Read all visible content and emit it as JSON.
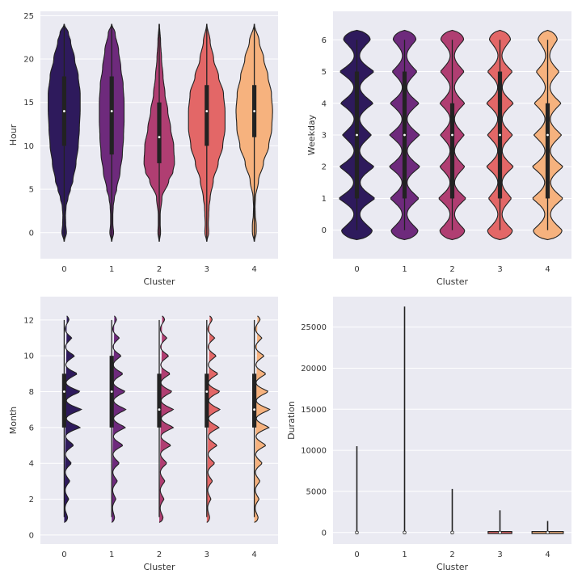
{
  "chart_data": [
    {
      "type": "violin",
      "xlabel": "Cluster",
      "ylabel": "Hour",
      "categories": [
        "0",
        "1",
        "2",
        "3",
        "4"
      ],
      "yticks": [
        0,
        5,
        10,
        15,
        20,
        25
      ],
      "ylim": [
        -3,
        25.5
      ],
      "grid": true,
      "violins": [
        {
          "cluster": "0",
          "min": -1,
          "max": 24,
          "q1": 10,
          "median": 14,
          "q3": 18,
          "profile": [
            [
              -1,
              0.01
            ],
            [
              0,
              0.12
            ],
            [
              1,
              0.08
            ],
            [
              2,
              0.07
            ],
            [
              3,
              0.1
            ],
            [
              4,
              0.2
            ],
            [
              5,
              0.33
            ],
            [
              6,
              0.46
            ],
            [
              8,
              0.62
            ],
            [
              10,
              0.74
            ],
            [
              12,
              0.8
            ],
            [
              14,
              0.84
            ],
            [
              16,
              0.84
            ],
            [
              18,
              0.74
            ],
            [
              20,
              0.55
            ],
            [
              22,
              0.34
            ],
            [
              23,
              0.22
            ],
            [
              24,
              0.01
            ]
          ]
        },
        {
          "cluster": "1",
          "min": -1,
          "max": 24,
          "q1": 9,
          "median": 14,
          "q3": 18,
          "profile": [
            [
              -1,
              0.01
            ],
            [
              0,
              0.1
            ],
            [
              1,
              0.06
            ],
            [
              2,
              0.06
            ],
            [
              3,
              0.08
            ],
            [
              4,
              0.14
            ],
            [
              5,
              0.26
            ],
            [
              7,
              0.44
            ],
            [
              9,
              0.56
            ],
            [
              11,
              0.62
            ],
            [
              13,
              0.65
            ],
            [
              15,
              0.65
            ],
            [
              17,
              0.6
            ],
            [
              19,
              0.48
            ],
            [
              21,
              0.36
            ],
            [
              23,
              0.18
            ],
            [
              24,
              0.01
            ]
          ]
        },
        {
          "cluster": "2",
          "min": -1,
          "max": 24,
          "q1": 8,
          "median": 11,
          "q3": 15,
          "profile": [
            [
              -1,
              0.01
            ],
            [
              0,
              0.07
            ],
            [
              1,
              0.05
            ],
            [
              2,
              0.05
            ],
            [
              4,
              0.14
            ],
            [
              6,
              0.5
            ],
            [
              7,
              0.72
            ],
            [
              8,
              0.8
            ],
            [
              10,
              0.76
            ],
            [
              12,
              0.6
            ],
            [
              14,
              0.45
            ],
            [
              16,
              0.3
            ],
            [
              18,
              0.2
            ],
            [
              20,
              0.12
            ],
            [
              22,
              0.07
            ],
            [
              24,
              0.01
            ]
          ]
        },
        {
          "cluster": "3",
          "min": -1,
          "max": 24,
          "q1": 10,
          "median": 14,
          "q3": 17,
          "profile": [
            [
              -1,
              0.01
            ],
            [
              0,
              0.1
            ],
            [
              1,
              0.08
            ],
            [
              2,
              0.1
            ],
            [
              3,
              0.12
            ],
            [
              4,
              0.18
            ],
            [
              6,
              0.34
            ],
            [
              8,
              0.6
            ],
            [
              10,
              0.84
            ],
            [
              12,
              0.96
            ],
            [
              14,
              0.96
            ],
            [
              16,
              0.88
            ],
            [
              18,
              0.62
            ],
            [
              20,
              0.36
            ],
            [
              22,
              0.18
            ],
            [
              24,
              0.01
            ]
          ]
        },
        {
          "cluster": "4",
          "min": -1,
          "max": 24,
          "q1": 11,
          "median": 14,
          "q3": 17,
          "profile": [
            [
              -1,
              0.01
            ],
            [
              0,
              0.1
            ],
            [
              1,
              0.1
            ],
            [
              2,
              0.05
            ],
            [
              3,
              0.04
            ],
            [
              4,
              0.06
            ],
            [
              6,
              0.22
            ],
            [
              8,
              0.48
            ],
            [
              10,
              0.76
            ],
            [
              12,
              0.92
            ],
            [
              14,
              0.96
            ],
            [
              16,
              0.9
            ],
            [
              18,
              0.72
            ],
            [
              20,
              0.5
            ],
            [
              22,
              0.26
            ],
            [
              24,
              0.01
            ]
          ]
        }
      ]
    },
    {
      "type": "violin",
      "xlabel": "Cluster",
      "ylabel": "Weekday",
      "categories": [
        "0",
        "1",
        "2",
        "3",
        "4"
      ],
      "yticks": [
        0,
        1,
        2,
        3,
        4,
        5,
        6
      ],
      "ylim": [
        -0.9,
        6.9
      ],
      "grid": true,
      "violins": [
        {
          "cluster": "0",
          "min": 0,
          "max": 6,
          "q1": 1,
          "median": 3,
          "q3": 5,
          "peaks": [
            0.8,
            0.95,
            0.9,
            0.75,
            0.85,
            0.9,
            0.7
          ],
          "dip": 0.16
        },
        {
          "cluster": "1",
          "min": 0,
          "max": 6,
          "q1": 1,
          "median": 3,
          "q3": 5,
          "peaks": [
            0.7,
            0.75,
            0.8,
            0.78,
            0.75,
            0.65,
            0.6
          ],
          "dip": 0.14
        },
        {
          "cluster": "2",
          "min": 0,
          "max": 6,
          "q1": 1,
          "median": 3,
          "q3": 4,
          "peaks": [
            0.65,
            0.72,
            0.65,
            0.62,
            0.65,
            0.62,
            0.6
          ],
          "dip": 0.14
        },
        {
          "cluster": "3",
          "min": 0,
          "max": 6,
          "q1": 1,
          "median": 3,
          "q3": 5,
          "peaks": [
            0.65,
            0.6,
            0.7,
            0.65,
            0.7,
            0.65,
            0.55
          ],
          "dip": 0.14
        },
        {
          "cluster": "4",
          "min": 0,
          "max": 6,
          "q1": 1,
          "median": 3,
          "q3": 4,
          "peaks": [
            0.75,
            0.8,
            0.8,
            0.72,
            0.7,
            0.6,
            0.5
          ],
          "dip": 0.16
        }
      ]
    },
    {
      "type": "violin",
      "xlabel": "Cluster",
      "ylabel": "Month",
      "categories": [
        "0",
        "1",
        "2",
        "3",
        "4"
      ],
      "yticks": [
        0,
        2,
        4,
        6,
        8,
        10,
        12
      ],
      "ylim": [
        -0.5,
        13.3
      ],
      "grid": true,
      "violins": [
        {
          "cluster": "0",
          "min": 1,
          "max": 12,
          "q1": 6,
          "median": 8,
          "q3": 9,
          "peaks": [
            0.18,
            0.24,
            0.3,
            0.38,
            0.5,
            0.85,
            0.92,
            0.85,
            0.7,
            0.55,
            0.4,
            0.25
          ],
          "dip": 0.1
        },
        {
          "cluster": "1",
          "min": 1,
          "max": 12,
          "q1": 6,
          "median": 8,
          "q3": 10,
          "peaks": [
            0.15,
            0.22,
            0.3,
            0.4,
            0.6,
            0.72,
            0.75,
            0.72,
            0.6,
            0.5,
            0.4,
            0.25
          ],
          "dip": 0.1
        },
        {
          "cluster": "2",
          "min": 1,
          "max": 12,
          "q1": 6,
          "median": 7,
          "q3": 9,
          "peaks": [
            0.2,
            0.25,
            0.3,
            0.4,
            0.62,
            0.75,
            0.75,
            0.68,
            0.58,
            0.5,
            0.4,
            0.28
          ],
          "dip": 0.1
        },
        {
          "cluster": "3",
          "min": 1,
          "max": 12,
          "q1": 6,
          "median": 8,
          "q3": 9,
          "peaks": [
            0.15,
            0.22,
            0.3,
            0.42,
            0.55,
            0.65,
            0.7,
            0.7,
            0.6,
            0.5,
            0.42,
            0.28
          ],
          "dip": 0.1
        },
        {
          "cluster": "4",
          "min": 1,
          "max": 12,
          "q1": 6,
          "median": 7,
          "q3": 9,
          "peaks": [
            0.2,
            0.25,
            0.3,
            0.42,
            0.62,
            0.78,
            0.82,
            0.75,
            0.62,
            0.52,
            0.4,
            0.3
          ],
          "dip": 0.1
        }
      ]
    },
    {
      "type": "violin",
      "xlabel": "Cluster",
      "ylabel": "Duration",
      "categories": [
        "0",
        "1",
        "2",
        "3",
        "4"
      ],
      "yticks": [
        0,
        5000,
        10000,
        15000,
        20000,
        25000
      ],
      "ylim": [
        -1400,
        28700
      ],
      "grid": true,
      "violins": [
        {
          "cluster": "0",
          "min": 0,
          "max": 10500,
          "median": 0,
          "base_width": 0.02
        },
        {
          "cluster": "1",
          "min": 0,
          "max": 27500,
          "median": 0,
          "base_width": 0.02
        },
        {
          "cluster": "2",
          "min": 0,
          "max": 5300,
          "median": 0,
          "base_width": 0.04
        },
        {
          "cluster": "3",
          "min": 0,
          "max": 2700,
          "median": 0,
          "base_width": 0.62
        },
        {
          "cluster": "4",
          "min": 0,
          "max": 1400,
          "median": 0,
          "base_width": 0.82
        }
      ]
    }
  ],
  "colors": {
    "background": "#eaeaf2",
    "grid": "#ffffff",
    "edge": "#222222",
    "palette": [
      "#2e1a5c",
      "#6e2a7c",
      "#b03e72",
      "#e36767",
      "#f6b27e"
    ]
  }
}
